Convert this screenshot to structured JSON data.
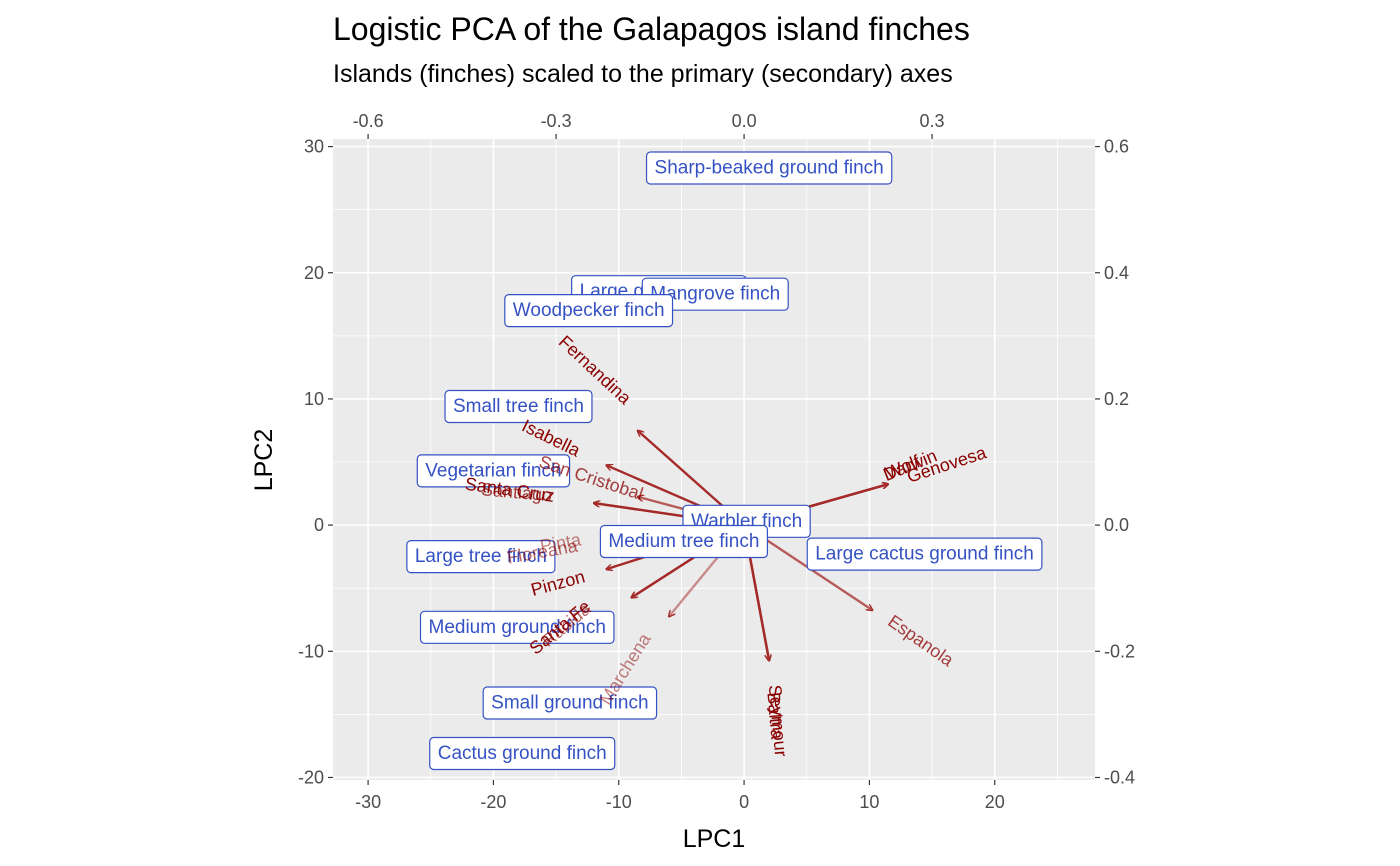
{
  "chart_data": {
    "type": "scatter",
    "title": "Logistic PCA of the Galapagos island finches",
    "subtitle": "Islands (finches) scaled to the primary (secondary) axes",
    "xlabel": "LPC1",
    "ylabel": "LPC2",
    "xlim": [
      -32.8,
      28
    ],
    "ylim": [
      -20.2,
      30.6
    ],
    "x_ticks": [
      -30,
      -20,
      -10,
      0,
      10,
      20
    ],
    "y_ticks": [
      -20,
      -10,
      0,
      10,
      20,
      30
    ],
    "x2_ticks": [
      -0.6,
      -0.3,
      0.0,
      0.3
    ],
    "x2_tick_labels": [
      "-0.6",
      "-0.3",
      "0.0",
      "0.3"
    ],
    "y2_ticks": [
      -0.4,
      -0.2,
      0.0,
      0.2,
      0.4,
      0.6
    ],
    "y2_tick_labels": [
      "-0.4",
      "-0.2",
      "0.0",
      "0.2",
      "0.4",
      "0.6"
    ],
    "secondary_scale": 50,
    "grid": true,
    "colors": {
      "panel": "#ebebeb",
      "grid": "#ffffff",
      "finch": "#3552c4",
      "island": "#8b0000",
      "arrow": "#a52a2a"
    },
    "finches": [
      {
        "name": "Sharp-beaked ground finch",
        "x": 2.0,
        "y": 28.3
      },
      {
        "name": "Large ground finch",
        "x": -6.8,
        "y": 18.5
      },
      {
        "name": "Mangrove finch",
        "x": -2.3,
        "y": 18.3
      },
      {
        "name": "Woodpecker finch",
        "x": -12.4,
        "y": 17.0
      },
      {
        "name": "Small tree finch",
        "x": -18.0,
        "y": 9.4
      },
      {
        "name": "Vegetarian finch",
        "x": -20.0,
        "y": 4.3
      },
      {
        "name": "Warbler finch",
        "x": 0.2,
        "y": 0.3
      },
      {
        "name": "Medium tree finch",
        "x": -4.8,
        "y": -1.3
      },
      {
        "name": "Large cactus ground finch",
        "x": 14.4,
        "y": -2.3
      },
      {
        "name": "Large tree finch",
        "x": -21.0,
        "y": -2.5
      },
      {
        "name": "Medium ground finch",
        "x": -18.1,
        "y": -8.1
      },
      {
        "name": "Small ground finch",
        "x": -13.9,
        "y": -14.1
      },
      {
        "name": "Cactus ground finch",
        "x": -17.7,
        "y": -18.1
      }
    ],
    "islands": [
      {
        "name": "Fernandina",
        "x": -0.17,
        "y": 0.15,
        "label_x": -0.238,
        "label_y": 0.246,
        "angle": 43,
        "alpha": 1.0
      },
      {
        "name": "Isabella",
        "x": -0.22,
        "y": 0.095,
        "label_x": -0.308,
        "label_y": 0.138,
        "angle": 26,
        "alpha": 1.0
      },
      {
        "name": "San Cristobal",
        "x": -0.17,
        "y": 0.045,
        "label_x": -0.244,
        "label_y": 0.075,
        "angle": 18,
        "alpha": 0.75
      },
      {
        "name": "Santa Cruz",
        "x": -0.24,
        "y": 0.035,
        "label_x": -0.374,
        "label_y": 0.056,
        "angle": 8,
        "alpha": 1.0
      },
      {
        "name": "Santiago",
        "x": -0.24,
        "y": 0.035,
        "label_x": -0.363,
        "label_y": 0.052,
        "angle": 5,
        "alpha": 0.75
      },
      {
        "name": "Floreana",
        "x": -0.2,
        "y": -0.03,
        "label_x": -0.322,
        "label_y": -0.042,
        "angle": -10,
        "alpha": 0.6
      },
      {
        "name": "Pinta",
        "x": -0.19,
        "y": -0.03,
        "label_x": -0.293,
        "label_y": -0.028,
        "angle": -10,
        "alpha": 0.5
      },
      {
        "name": "Pinzon",
        "x": -0.22,
        "y": -0.07,
        "label_x": -0.297,
        "label_y": -0.092,
        "angle": -15,
        "alpha": 1.0
      },
      {
        "name": "Santa Fe",
        "x": -0.18,
        "y": -0.115,
        "label_x": -0.294,
        "label_y": -0.162,
        "angle": -40,
        "alpha": 1.0
      },
      {
        "name": "Rabida",
        "x": -0.18,
        "y": -0.115,
        "label_x": -0.284,
        "label_y": -0.158,
        "angle": -40,
        "alpha": 0.6
      },
      {
        "name": "Marchena",
        "x": -0.12,
        "y": -0.145,
        "label_x": -0.19,
        "label_y": -0.228,
        "angle": -58,
        "alpha": 0.5
      },
      {
        "name": "Baltra",
        "x": 0.04,
        "y": -0.215,
        "label_x": 0.05,
        "label_y": -0.302,
        "angle": 85,
        "alpha": 1.0
      },
      {
        "name": "Seymour",
        "x": 0.04,
        "y": -0.215,
        "label_x": 0.054,
        "label_y": -0.31,
        "angle": 85,
        "alpha": 1.0
      },
      {
        "name": "Espanola",
        "x": 0.205,
        "y": -0.135,
        "label_x": 0.282,
        "label_y": -0.183,
        "angle": 35,
        "alpha": 0.75
      },
      {
        "name": "Darwin",
        "x": 0.23,
        "y": 0.065,
        "label_x": 0.265,
        "label_y": 0.095,
        "angle": -22,
        "alpha": 1.0
      },
      {
        "name": "Wolf",
        "x": 0.23,
        "y": 0.065,
        "label_x": 0.253,
        "label_y": 0.092,
        "angle": -22,
        "alpha": 1.0
      },
      {
        "name": "Genovesa",
        "x": 0.23,
        "y": 0.065,
        "label_x": 0.323,
        "label_y": 0.096,
        "angle": -18,
        "alpha": 1.0
      }
    ]
  }
}
